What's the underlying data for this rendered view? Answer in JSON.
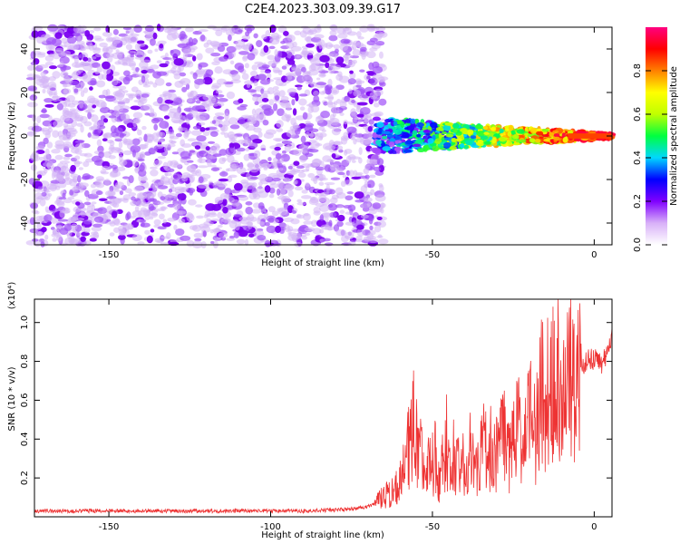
{
  "title": "C2E4.2023.303.09.39.G17",
  "chart_data": [
    {
      "type": "heatmap",
      "xlabel": "Height of straight line (km)",
      "ylabel": "Frequency (Hz)",
      "xlim": [
        -173,
        5.5
      ],
      "ylim": [
        -50,
        50
      ],
      "xticks": [
        -150,
        -100,
        -50,
        0
      ],
      "yticks": [
        -40,
        -20,
        0,
        20,
        40
      ],
      "colorbar": {
        "label": "Normalized spectral amplitude",
        "range": [
          0,
          1
        ],
        "ticks": [
          "0.0",
          "0.2",
          "0.4",
          "0.6",
          "0.8"
        ],
        "colors": [
          "#ffffff",
          "#d8b0f8",
          "#8000ff",
          "#0000ff",
          "#00d8ff",
          "#00ff40",
          "#c0ff00",
          "#ffff00",
          "#ff8000",
          "#ff0000",
          "#ff0080"
        ]
      },
      "features": [
        {
          "description": "broadband noise",
          "x_range": [
            -173,
            -68
          ],
          "freq_range": [
            -50,
            50
          ],
          "amplitude": 0.1
        },
        {
          "description": "narrowing signal band",
          "x_range": [
            -68,
            5.5
          ],
          "freq_center": 0,
          "half_width_start": 8,
          "half_width_end": 1,
          "amplitude_start": 0.25,
          "amplitude_end": 0.95
        }
      ]
    },
    {
      "type": "line",
      "xlabel": "Height of straight line (km)",
      "ylabel": "SNR (10 * v/v)",
      "yscale_note": "(x10⁴)",
      "xlim": [
        -173,
        5.5
      ],
      "ylim": [
        0,
        1.12
      ],
      "xticks": [
        -150,
        -100,
        -50,
        0
      ],
      "yticks": [
        "0.2",
        "0.4",
        "0.6",
        "0.8",
        "1.0"
      ],
      "color": "#ee3333",
      "series": [
        {
          "x": [
            -173,
            -160,
            -150,
            -140,
            -130,
            -120,
            -110,
            -100,
            -90,
            -80,
            -75,
            -70,
            -68,
            -66,
            -64,
            -62,
            -60,
            -58,
            -56,
            -54,
            -52,
            -50,
            -48,
            -46,
            -44,
            -42,
            -40,
            -38,
            -36,
            -34,
            -32,
            -30,
            -28,
            -26,
            -24,
            -22,
            -20,
            -18,
            -16,
            -14,
            -12,
            -10,
            -8,
            -6,
            -4,
            -2,
            0,
            2,
            4,
            5.5
          ],
          "values": [
            0.03,
            0.03,
            0.03,
            0.03,
            0.03,
            0.03,
            0.03,
            0.03,
            0.03,
            0.035,
            0.04,
            0.05,
            0.07,
            0.1,
            0.12,
            0.15,
            0.2,
            0.3,
            0.55,
            0.35,
            0.25,
            0.3,
            0.2,
            0.35,
            0.25,
            0.3,
            0.2,
            0.3,
            0.25,
            0.4,
            0.3,
            0.35,
            0.45,
            0.3,
            0.5,
            0.4,
            0.55,
            0.45,
            0.7,
            0.5,
            0.9,
            0.6,
            0.72,
            0.78,
            0.75,
            0.8,
            0.82,
            0.78,
            0.85,
            0.95
          ]
        }
      ]
    }
  ]
}
